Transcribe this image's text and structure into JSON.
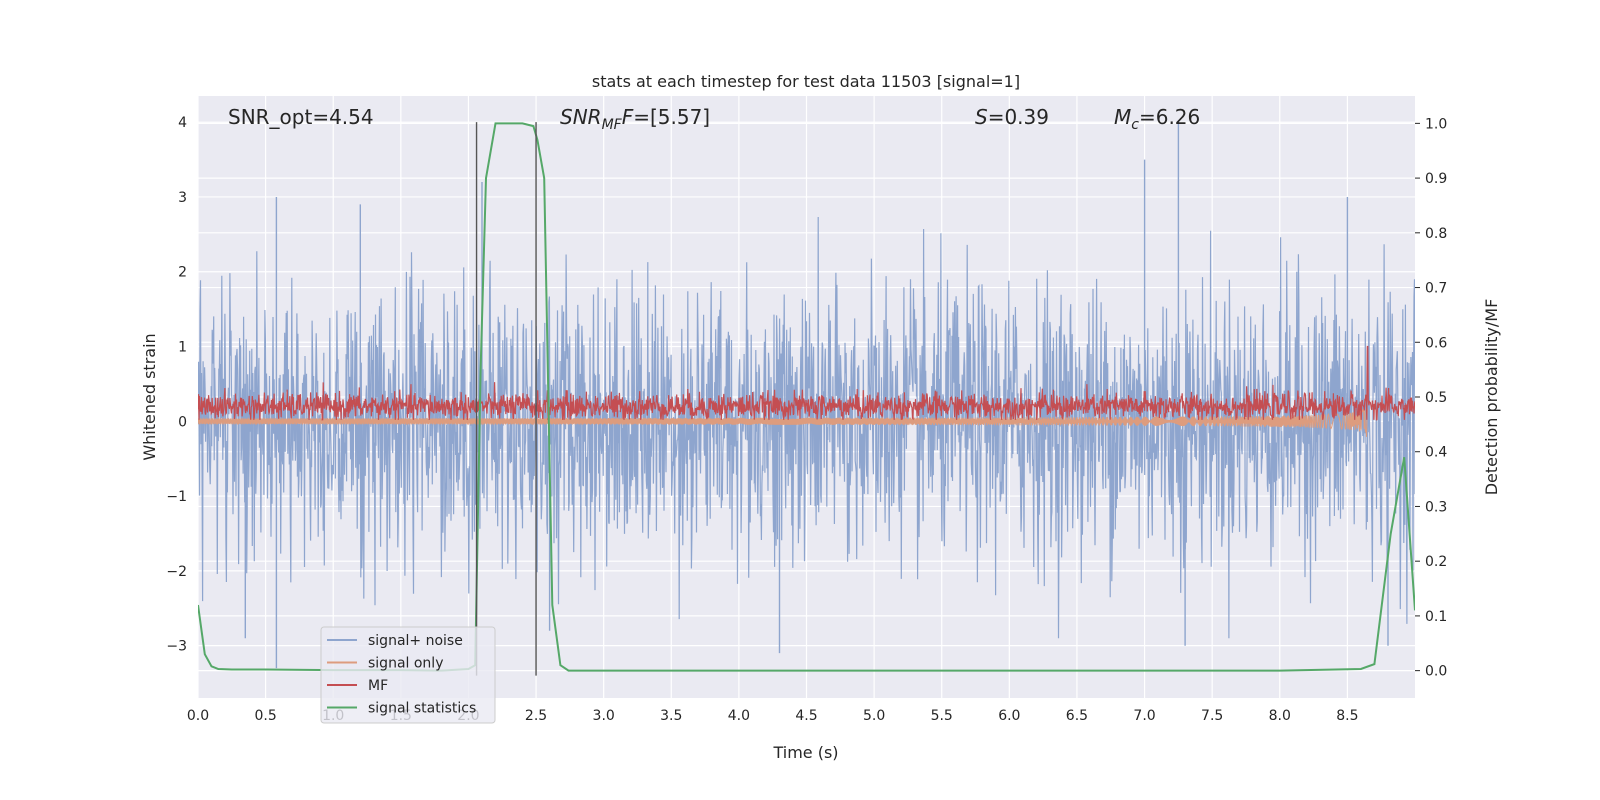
{
  "chart_data": {
    "type": "line",
    "title": "stats at each timestep for test data 11503 [signal=1]",
    "xlabel": "Time (s)",
    "ylabel": "Whitened strain",
    "y2label": "Detection probability/MF",
    "xlim": [
      0,
      9
    ],
    "ylim": [
      -3.7,
      4.35
    ],
    "y2lim": [
      -0.05,
      1.05
    ],
    "grid": true,
    "legend_position": "lower-left",
    "xticks": [
      "0.0",
      "0.5",
      "1.0",
      "1.5",
      "2.0",
      "2.5",
      "3.0",
      "3.5",
      "4.0",
      "4.5",
      "5.0",
      "5.5",
      "6.0",
      "6.5",
      "7.0",
      "7.5",
      "8.0",
      "8.5"
    ],
    "xtick_values": [
      0,
      0.5,
      1,
      1.5,
      2,
      2.5,
      3,
      3.5,
      4,
      4.5,
      5,
      5.5,
      6,
      6.5,
      7,
      7.5,
      8,
      8.5
    ],
    "yticks": [
      "−3",
      "−2",
      "−1",
      "0",
      "1",
      "2",
      "3",
      "4"
    ],
    "ytick_values": [
      -3,
      -2,
      -1,
      0,
      1,
      2,
      3,
      4
    ],
    "y2ticks": [
      "0.0",
      "0.1",
      "0.2",
      "0.3",
      "0.4",
      "0.5",
      "0.6",
      "0.7",
      "0.8",
      "0.9",
      "1.0"
    ],
    "y2tick_values": [
      0,
      0.1,
      0.2,
      0.3,
      0.4,
      0.5,
      0.6,
      0.7,
      0.8,
      0.9,
      1.0
    ],
    "annotations": {
      "snr_opt": "SNR_opt=4.54",
      "snr_mf_sym": "SNR",
      "snr_mf_sub": "MF",
      "snr_mf_val": "=[5.57]",
      "s_sym": "S",
      "s_val": "=0.39",
      "mc_sym": "M",
      "mc_sub": "c",
      "mc_val": "=6.26"
    },
    "vlines": [
      {
        "x": 2.06,
        "y": [
          -3.4,
          4.0
        ]
      },
      {
        "x": 2.5,
        "y": [
          -3.4,
          4.0
        ]
      }
    ],
    "series": [
      {
        "name": "signal+ noise",
        "color": "#8ea5ce",
        "kind": "noise",
        "std": 0.9,
        "spikes_top": [
          [
            0.58,
            3.0
          ],
          [
            1.2,
            2.9
          ],
          [
            2.1,
            3.2
          ],
          [
            7.0,
            3.5
          ],
          [
            7.25,
            4.0
          ],
          [
            8.5,
            3.0
          ]
        ],
        "spikes_bottom": [
          [
            0.58,
            -3.3
          ],
          [
            0.35,
            -2.9
          ],
          [
            4.3,
            -3.1
          ],
          [
            7.3,
            -3.0
          ],
          [
            8.8,
            -3.0
          ],
          [
            2.6,
            -2.8
          ]
        ]
      },
      {
        "name": "signal only",
        "color": "#dd9c7e",
        "kind": "chirp",
        "t_merge": 8.65,
        "amp_end": 0.55
      },
      {
        "name": "MF",
        "color": "#c44e52",
        "kind": "mf",
        "base": 0.2,
        "amp": 0.15,
        "peak_x": 8.65,
        "peak_y": 1.0
      },
      {
        "name": "signal statistics",
        "color": "#55a868",
        "axis": "y2",
        "x": [
          0.0,
          0.05,
          0.1,
          0.15,
          0.25,
          0.5,
          1.0,
          1.5,
          1.8,
          2.0,
          2.05,
          2.09,
          2.13,
          2.2,
          2.4,
          2.48,
          2.51,
          2.56,
          2.62,
          2.68,
          2.74,
          2.8,
          3.0,
          3.5,
          4.0,
          5.0,
          6.0,
          7.0,
          8.0,
          8.6,
          8.7,
          8.82,
          8.92,
          9.0
        ],
        "y": [
          0.12,
          0.03,
          0.008,
          0.003,
          0.002,
          0.002,
          0.001,
          0.001,
          0.0,
          0.003,
          0.01,
          0.55,
          0.9,
          1.0,
          1.0,
          0.995,
          0.97,
          0.9,
          0.12,
          0.01,
          0.0,
          0.0,
          0.0,
          0.0,
          0.0,
          0.0,
          0.0,
          0.0,
          0.0,
          0.003,
          0.012,
          0.25,
          0.39,
          0.11
        ]
      }
    ]
  }
}
